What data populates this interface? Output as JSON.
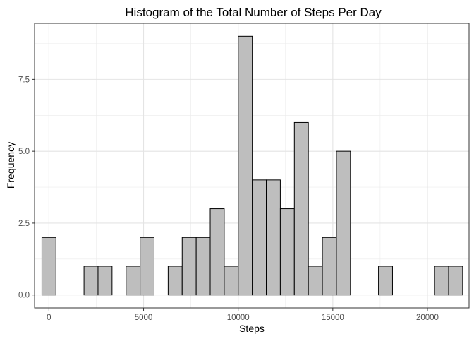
{
  "chart_data": {
    "type": "bar",
    "title": "Histogram of the Total Number of Steps Per Day",
    "xlabel": "Steps",
    "ylabel": "Frequency",
    "xlim": [
      -760,
      22200
    ],
    "ylim": [
      -0.45,
      9.45
    ],
    "x_ticks": [
      0,
      5000,
      10000,
      15000,
      20000
    ],
    "x_tick_labels": [
      "0",
      "5000",
      "10000",
      "15000",
      "20000"
    ],
    "y_ticks": [
      0,
      2.5,
      5,
      7.5
    ],
    "y_tick_labels": [
      "0.0",
      "2.5",
      "5.0",
      "7.5"
    ],
    "x_minor_ticks": [
      2500,
      7500,
      12500,
      17500
    ],
    "y_minor_ticks": [
      1.25,
      3.75,
      6.25,
      8.75
    ],
    "grid": true,
    "bin_width": 741,
    "bar_fill": "#bebebe",
    "bar_stroke": "#000000",
    "bins": [
      {
        "x": 0,
        "count": 2
      },
      {
        "x": 741,
        "count": 0
      },
      {
        "x": 1482,
        "count": 0
      },
      {
        "x": 2223,
        "count": 1
      },
      {
        "x": 2964,
        "count": 1
      },
      {
        "x": 3705,
        "count": 0
      },
      {
        "x": 4446,
        "count": 1
      },
      {
        "x": 5187,
        "count": 2
      },
      {
        "x": 5928,
        "count": 0
      },
      {
        "x": 6669,
        "count": 1
      },
      {
        "x": 7410,
        "count": 2
      },
      {
        "x": 8151,
        "count": 2
      },
      {
        "x": 8892,
        "count": 3
      },
      {
        "x": 9633,
        "count": 1
      },
      {
        "x": 10374,
        "count": 9
      },
      {
        "x": 11115,
        "count": 4
      },
      {
        "x": 11856,
        "count": 4
      },
      {
        "x": 12597,
        "count": 3
      },
      {
        "x": 13338,
        "count": 6
      },
      {
        "x": 14079,
        "count": 1
      },
      {
        "x": 14820,
        "count": 2
      },
      {
        "x": 15561,
        "count": 5
      },
      {
        "x": 16302,
        "count": 0
      },
      {
        "x": 17043,
        "count": 0
      },
      {
        "x": 17784,
        "count": 1
      },
      {
        "x": 18525,
        "count": 0
      },
      {
        "x": 19266,
        "count": 0
      },
      {
        "x": 20007,
        "count": 0
      },
      {
        "x": 20748,
        "count": 1
      },
      {
        "x": 21489,
        "count": 1
      }
    ]
  }
}
